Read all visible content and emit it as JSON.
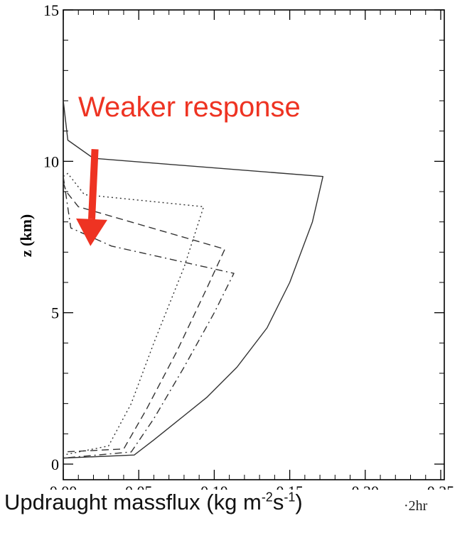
{
  "chart_data": {
    "type": "line",
    "xlabel": {
      "prefix": "Updraught massflux (kg m",
      "exp1": "-2",
      "mid": "s",
      "exp2": "-1",
      "suffix": ")"
    },
    "ylabel": "z (km)",
    "xlim": [
      0,
      0.25
    ],
    "ylim": [
      0,
      15
    ],
    "xticks": [
      "0.00",
      "0.05",
      "0.10",
      "0.15",
      "0.20",
      "0.25"
    ],
    "yticks": [
      "0",
      "5",
      "10",
      "15"
    ],
    "grid": false,
    "annotation": {
      "text": "Weaker response",
      "color": "#ee3322",
      "arrow_from": [
        0.021,
        10.4
      ],
      "arrow_to": [
        0.018,
        7.2
      ]
    },
    "cutoff_text": "2hr",
    "series": [
      {
        "style": "solid",
        "x": [
          0.0,
          0.003,
          0.02,
          0.172,
          0.165,
          0.15,
          0.135,
          0.115,
          0.095,
          0.075,
          0.06,
          0.047,
          0.0
        ],
        "y": [
          12.0,
          10.7,
          10.1,
          9.5,
          8.0,
          6.0,
          4.5,
          3.2,
          2.2,
          1.4,
          0.8,
          0.3,
          0.2
        ]
      },
      {
        "style": "dotted",
        "x": [
          0.0,
          0.003,
          0.014,
          0.093,
          0.08,
          0.06,
          0.045,
          0.03,
          0.0
        ],
        "y": [
          9.5,
          9.6,
          8.9,
          8.5,
          6.5,
          4.0,
          2.0,
          0.6,
          0.3
        ]
      },
      {
        "style": "dashed",
        "x": [
          0.0,
          0.002,
          0.01,
          0.107,
          0.095,
          0.075,
          0.055,
          0.04,
          0.0
        ],
        "y": [
          9.3,
          9.0,
          8.5,
          7.1,
          5.8,
          3.7,
          1.8,
          0.5,
          0.4
        ]
      },
      {
        "style": "dashdot",
        "x": [
          0.0,
          0.005,
          0.032,
          0.113,
          0.1,
          0.08,
          0.06,
          0.045,
          0.0
        ],
        "y": [
          9.5,
          7.8,
          7.2,
          6.3,
          5.0,
          3.2,
          1.5,
          0.4,
          0.2
        ]
      }
    ]
  }
}
